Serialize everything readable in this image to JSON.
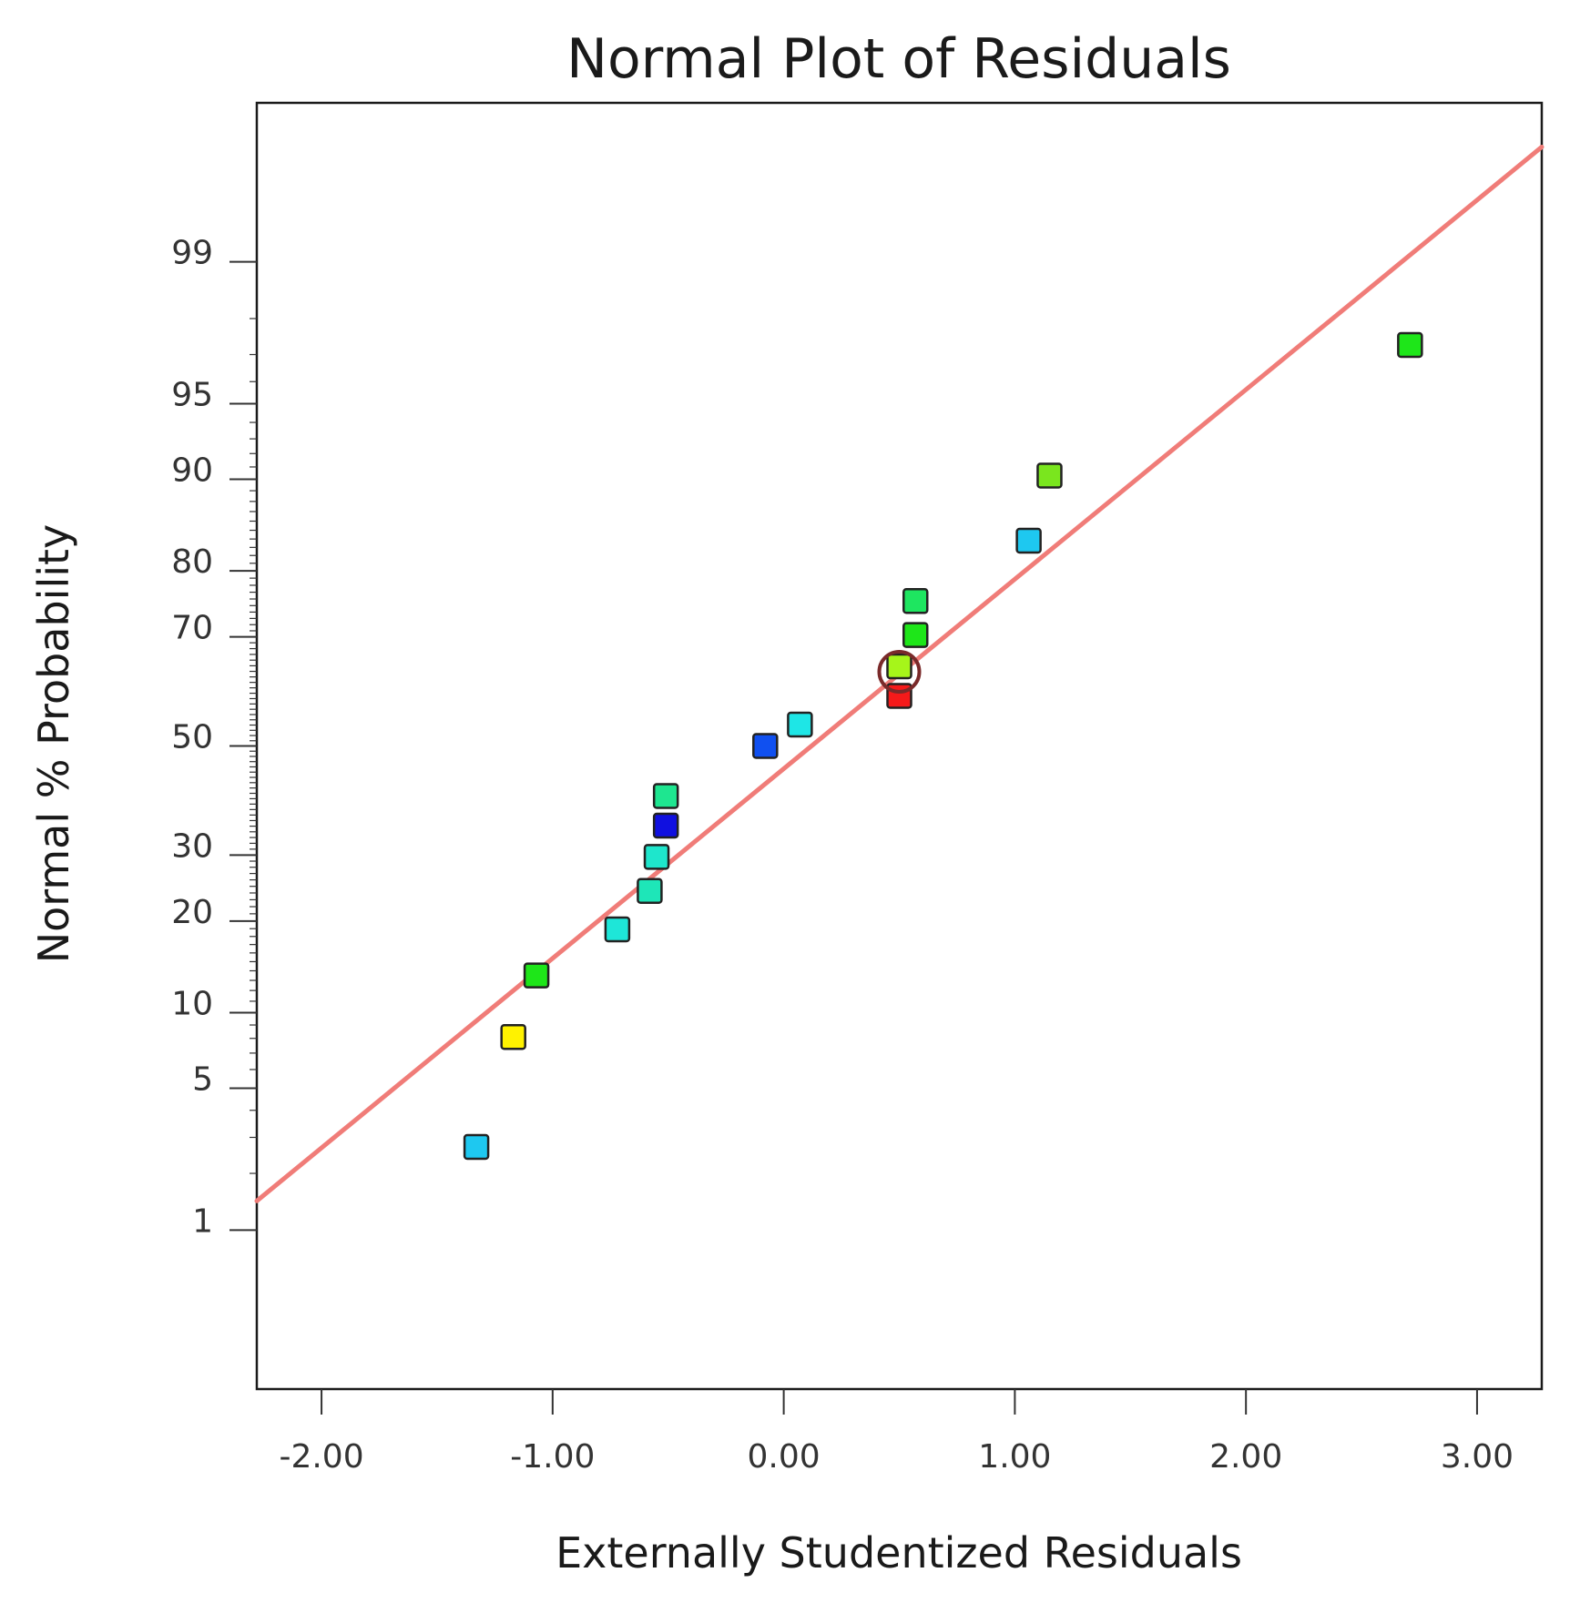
{
  "chart_data": {
    "type": "scatter",
    "title": "Normal Plot of Residuals",
    "xlabel": "Externally Studentized Residuals",
    "ylabel": "Normal % Probability",
    "xlim": [
      -2.28,
      3.28
    ],
    "x_ticks": [
      -2,
      -1,
      0,
      1,
      2,
      3
    ],
    "x_tick_labels": [
      "-2.00",
      "-1.00",
      "0.00",
      "1.00",
      "2.00",
      "3.00"
    ],
    "y_scale": "normal-probability",
    "ylim_percent": [
      0.1,
      99.9
    ],
    "y_ticks": [
      1,
      5,
      10,
      20,
      30,
      50,
      70,
      80,
      90,
      95,
      99
    ],
    "y_tick_labels": [
      "1",
      "5",
      "10",
      "20",
      "30",
      "50",
      "70",
      "80",
      "90",
      "95",
      "99"
    ],
    "reference_line": {
      "color": "#f07c78",
      "points": [
        {
          "x": -2.28,
          "y": 1.44
        },
        {
          "x": 3.28,
          "y": 99.8
        }
      ]
    },
    "points": [
      {
        "x": -1.33,
        "y": 2.7,
        "color": "#1ec8f0"
      },
      {
        "x": -1.17,
        "y": 8.1,
        "color": "#fff200"
      },
      {
        "x": -1.07,
        "y": 13.5,
        "color": "#1ee619"
      },
      {
        "x": -0.72,
        "y": 18.9,
        "color": "#1ee6d8"
      },
      {
        "x": -0.58,
        "y": 24.3,
        "color": "#1ee6b8"
      },
      {
        "x": -0.55,
        "y": 29.7,
        "color": "#1ee6cc"
      },
      {
        "x": -0.51,
        "y": 35.1,
        "color": "#1010e0"
      },
      {
        "x": -0.51,
        "y": 40.5,
        "color": "#1ee690"
      },
      {
        "x": -0.08,
        "y": 50.0,
        "color": "#1050f0"
      },
      {
        "x": 0.07,
        "y": 54.1,
        "color": "#1ee6e6"
      },
      {
        "x": 0.5,
        "y": 59.5,
        "color": "#f51a1a"
      },
      {
        "x": 0.5,
        "y": 64.9,
        "color": "#a6f51a",
        "highlighted": true
      },
      {
        "x": 0.57,
        "y": 70.3,
        "color": "#1ee619"
      },
      {
        "x": 0.57,
        "y": 75.7,
        "color": "#1ee660"
      },
      {
        "x": 1.06,
        "y": 83.8,
        "color": "#1ec8f0"
      },
      {
        "x": 1.15,
        "y": 90.3,
        "color": "#7ae61e"
      },
      {
        "x": 2.71,
        "y": 97.3,
        "color": "#1ee619"
      }
    ]
  }
}
